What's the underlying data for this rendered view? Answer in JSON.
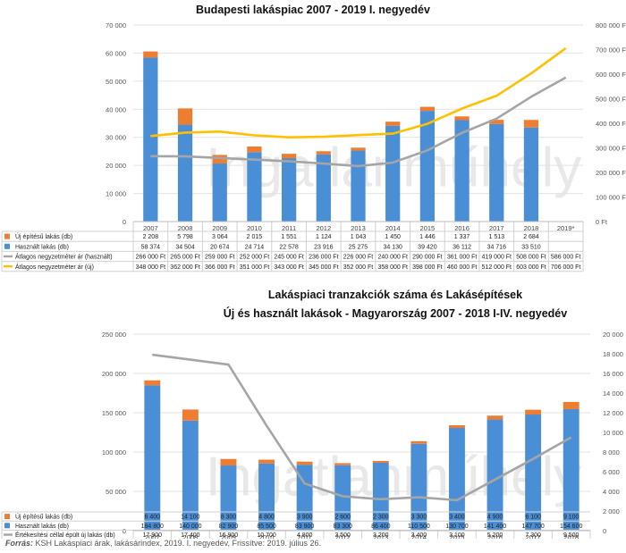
{
  "chart_data": [
    {
      "type": "bar",
      "title": "Budapesti lakáspiac 2007 - 2019 I. negyedév",
      "categories": [
        "2007",
        "2008",
        "2009",
        "2010",
        "2011",
        "2012",
        "2013",
        "2014",
        "2015",
        "2016",
        "2017",
        "2018",
        "2019*"
      ],
      "stacked": true,
      "ylim_left": [
        0,
        70000
      ],
      "left_ticks": [
        "70 000",
        "60 000",
        "50 000",
        "40 000",
        "30 000",
        "20 000",
        "10 000",
        "0"
      ],
      "ylim_right": [
        0,
        800000
      ],
      "right_ticks": [
        "800 000 Ft",
        "700 000 Ft",
        "600 000 Ft",
        "500 000 Ft",
        "400 000 Ft",
        "300 000 Ft",
        "200 000 Ft",
        "100 000 Ft",
        "0 Ft"
      ],
      "grid": true,
      "legend_placement": "table-below",
      "series": [
        {
          "name": "Új építésű lakás (db)",
          "kind": "bar",
          "axis": "left",
          "color": "#ed7d31",
          "values": [
            2208,
            5798,
            3064,
            2015,
            1551,
            1124,
            1043,
            1450,
            1446,
            1337,
            1513,
            2684,
            null
          ],
          "labels": [
            "2 208",
            "5 798",
            "3 064",
            "2 015",
            "1 551",
            "1 124",
            "1 043",
            "1 450",
            "1 446",
            "1 337",
            "1 513",
            "2 684",
            ""
          ]
        },
        {
          "name": "Használt lakás (db)",
          "kind": "bar",
          "axis": "left",
          "color": "#4a8fd6",
          "values": [
            58374,
            34504,
            20674,
            24714,
            22578,
            23916,
            25275,
            34130,
            39420,
            36112,
            34716,
            33510,
            null
          ],
          "labels": [
            "58 374",
            "34 504",
            "20 674",
            "24 714",
            "22 578",
            "23 916",
            "25 275",
            "34 130",
            "39 420",
            "36 112",
            "34 716",
            "33 510",
            ""
          ]
        },
        {
          "name": "Átlagos negyzetméter ár (használt)",
          "kind": "line",
          "axis": "right",
          "color": "#a5a5a5",
          "values": [
            266000,
            265000,
            259000,
            252000,
            245000,
            236000,
            226000,
            240000,
            290000,
            361000,
            419000,
            508000,
            586000
          ],
          "labels": [
            "266 000 Ft",
            "265 000 Ft",
            "259 000 Ft",
            "252 000 Ft",
            "245 000 Ft",
            "236 000 Ft",
            "226 000 Ft",
            "240 000 Ft",
            "290 000 Ft",
            "361 000 Ft",
            "419 000 Ft",
            "508 000 Ft",
            "586 000 Ft"
          ]
        },
        {
          "name": "Átlagos negyzetméter ár (új)",
          "kind": "line",
          "axis": "right",
          "color": "#ffc000",
          "values": [
            348000,
            362000,
            366000,
            351000,
            343000,
            345000,
            352000,
            358000,
            398000,
            460000,
            512000,
            603000,
            706000
          ],
          "labels": [
            "348 000 Ft",
            "362 000 Ft",
            "366 000 Ft",
            "351 000 Ft",
            "343 000 Ft",
            "345 000 Ft",
            "352 000 Ft",
            "358 000 Ft",
            "398 000 Ft",
            "460 000 Ft",
            "512 000 Ft",
            "603 000 Ft",
            "706 000 Ft"
          ]
        }
      ]
    },
    {
      "type": "bar",
      "title": "Lakáspiaci tranzakciók száma és Lakásépítések",
      "subtitle": "Új és használt lakások - Magyarország 2007 - 2018 I-IV. negyedév",
      "categories": [
        "2007",
        "2008",
        "2009",
        "2010",
        "2011",
        "2012",
        "2013",
        "2014",
        "2015",
        "2016",
        "2017",
        "2018"
      ],
      "stacked": true,
      "ylim_left": [
        0,
        250000
      ],
      "left_ticks": [
        "250 000",
        "200 000",
        "150 000",
        "100 000",
        "50 000",
        "0"
      ],
      "ylim_right": [
        0,
        20000
      ],
      "right_ticks": [
        "20 000",
        "18 000",
        "16 000",
        "14 000",
        "12 000",
        "10 000",
        "8 000",
        "6 000",
        "4 000",
        "2 000",
        "0"
      ],
      "grid": true,
      "legend_placement": "table-below",
      "series": [
        {
          "name": "Új építésű lakás (db)",
          "kind": "bar",
          "axis": "left",
          "color": "#ed7d31",
          "values": [
            6400,
            14100,
            8300,
            4800,
            3900,
            2600,
            2300,
            3300,
            3400,
            4900,
            6100,
            9100
          ],
          "labels": [
            "6 400",
            "14 100",
            "8 300",
            "4 800",
            "3 900",
            "2 600",
            "2 300",
            "3 300",
            "3 400",
            "4 900",
            "6 100",
            "9 100"
          ]
        },
        {
          "name": "Használt lakás (db)",
          "kind": "bar",
          "axis": "left",
          "color": "#4a8fd6",
          "values": [
            184800,
            140000,
            82900,
            85500,
            83900,
            83300,
            86400,
            110500,
            130700,
            141400,
            147700,
            154600
          ],
          "labels": [
            "184 800",
            "140 000",
            "82 900",
            "85 500",
            "83 900",
            "83 300",
            "86 400",
            "110 500",
            "130 700",
            "141 400",
            "147 700",
            "154 600"
          ]
        },
        {
          "name": "Értékesítési céllal épült új lakás (db)",
          "kind": "line",
          "axis": "right",
          "color": "#a5a5a5",
          "values": [
            17900,
            17400,
            16900,
            10700,
            4800,
            3500,
            3200,
            3400,
            3100,
            5200,
            7300,
            9500
          ],
          "labels": [
            "17 900",
            "17 400",
            "16 900",
            "10 700",
            "4 800",
            "3 500",
            "3 200",
            "3 400",
            "3 100",
            "5 200",
            "7 300",
            "9 500"
          ]
        }
      ]
    }
  ],
  "watermark": "Ingatlanmű­hely",
  "source": {
    "label": "Forrás:",
    "text": " KSH Lakáspiaci árak, lakásárindex, 2019. I. negyedév, Frissítve: 2019. július 26."
  }
}
